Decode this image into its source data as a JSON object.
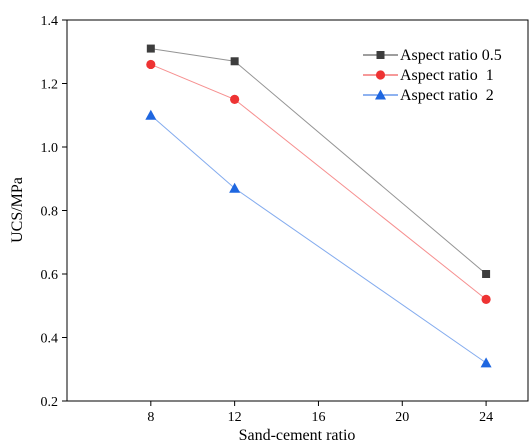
{
  "chart_data": {
    "type": "line",
    "x": [
      8,
      12,
      24
    ],
    "xlabel": "Sand-cement ratio",
    "ylabel": "UCS/MPa",
    "xlim": [
      4,
      26
    ],
    "ylim": [
      0.2,
      1.4
    ],
    "xticks": [
      8,
      12,
      16,
      20,
      24
    ],
    "yticks": [
      0.2,
      0.4,
      0.6,
      0.8,
      1.0,
      1.2,
      1.4
    ],
    "xtick_labels": [
      "8",
      "12",
      "16",
      "20",
      "24"
    ],
    "ytick_labels": [
      "0.2",
      "0.4",
      "0.6",
      "0.8",
      "1.0",
      "1.2",
      "1.4"
    ],
    "grid": false,
    "legend_position": "top-right",
    "series": [
      {
        "name": "Aspect ratio 0.5",
        "marker": "square",
        "color": "#3d3d3d",
        "values": [
          1.31,
          1.27,
          0.6
        ]
      },
      {
        "name": "Aspect ratio  1",
        "marker": "circle",
        "color": "#ee3333",
        "values": [
          1.26,
          1.15,
          0.52
        ]
      },
      {
        "name": "Aspect ratio  2",
        "marker": "triangle",
        "color": "#1e66e0",
        "values": [
          1.1,
          0.87,
          0.32
        ]
      }
    ]
  }
}
